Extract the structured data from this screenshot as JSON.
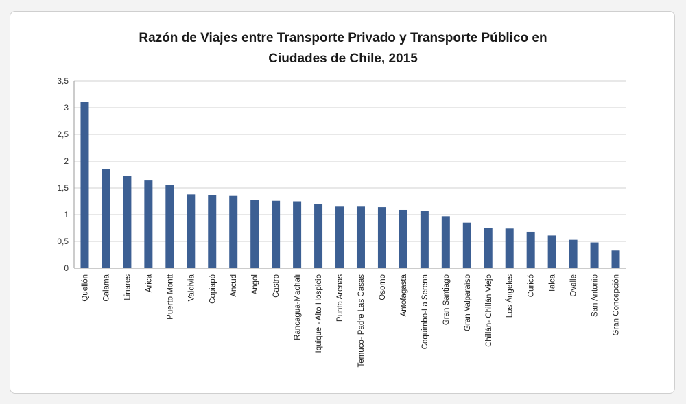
{
  "chart_data": {
    "type": "bar",
    "title_line1": "Razón de Viajes entre Transporte Privado y Transporte Público en",
    "title_line2": "Ciudades de Chile, 2015",
    "xlabel": "",
    "ylabel": "",
    "ylim": [
      0,
      3.5
    ],
    "yticks": [
      "0",
      "0,5",
      "1",
      "1,5",
      "2",
      "2,5",
      "3",
      "3,5"
    ],
    "grid": true,
    "legend": "none",
    "bar_color": "#3c5f93",
    "categories": [
      "Quellón",
      "Calama",
      "Linares",
      "Arica",
      "Puerto Montt",
      "Valdivia",
      "Copiapó",
      "Ancud",
      "Angol",
      "Castro",
      "Rancagua-Machali",
      "Iquique - Alto Hospicio",
      "Punta Arenas",
      "Temuco- Padre Las Casas",
      "Osorno",
      "Antofagasta",
      "Coquimbo-La Serena",
      "Gran Santiago",
      "Gran Valparaíso",
      "Chillán- Chillán Viejo",
      "Los Ángeles",
      "Curicó",
      "Talca",
      "Ovalle",
      "San Antonio",
      "Gran Concepción"
    ],
    "values": [
      3.11,
      1.85,
      1.72,
      1.64,
      1.56,
      1.38,
      1.37,
      1.35,
      1.28,
      1.26,
      1.25,
      1.2,
      1.15,
      1.15,
      1.14,
      1.09,
      1.07,
      0.97,
      0.85,
      0.75,
      0.74,
      0.68,
      0.61,
      0.53,
      0.48,
      0.33
    ]
  }
}
